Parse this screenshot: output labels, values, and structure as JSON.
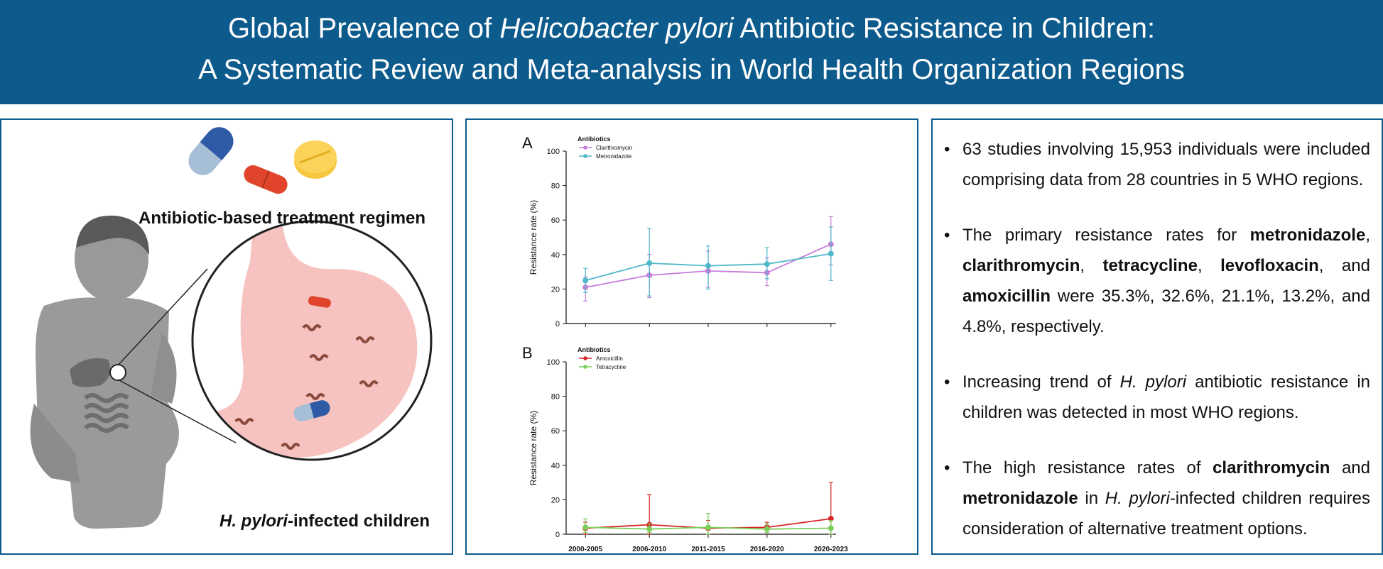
{
  "header": {
    "title_line1_pre": "Global Prevalence of ",
    "title_line1_italic": "Helicobacter pylori",
    "title_line1_post": " Antibiotic Resistance in Children:",
    "title_line2": "A Systematic Review and Meta-analysis in World Health Organization Regions",
    "banner_color": "#0d5b8c"
  },
  "illustration": {
    "treatment_label": "Antibiotic-based treatment regimen",
    "children_label_italic": "H. pylori",
    "children_label_rest": "-infected children",
    "icons": [
      "capsule-icon",
      "tablet-icon",
      "round-pill-icon",
      "child-silhouette-icon",
      "stomach-icon",
      "bacteria-icon"
    ]
  },
  "chart_data": [
    {
      "type": "line",
      "panel_label": "A",
      "legend_title": "Antibiotics",
      "ylabel": "Resistance rate (%)",
      "ylim": [
        0,
        100
      ],
      "yticks": [
        "0",
        "20",
        "40",
        "60",
        "80",
        "100"
      ],
      "categories": [
        "2000-2005",
        "2006-2010",
        "2011-2015",
        "2016-2020",
        "2020-2023"
      ],
      "series": [
        {
          "name": "Clarithromycin",
          "color": "#c77ddb",
          "values": [
            21,
            28,
            30.5,
            29.5,
            46
          ],
          "err_low": [
            13,
            15,
            21,
            22,
            34
          ],
          "err_high": [
            27,
            40,
            42,
            38,
            62
          ]
        },
        {
          "name": "Metronidazole",
          "color": "#4fb8c9",
          "values": [
            25,
            35,
            33.5,
            34.5,
            40.5
          ],
          "err_low": [
            18,
            16,
            20,
            26,
            25
          ],
          "err_high": [
            32,
            55,
            45,
            44,
            56
          ]
        }
      ]
    },
    {
      "type": "line",
      "panel_label": "B",
      "legend_title": "Antibiotics",
      "ylabel": "Resistance rate (%)",
      "ylim": [
        0,
        100
      ],
      "yticks": [
        "0",
        "20",
        "40",
        "60",
        "80",
        "100"
      ],
      "categories": [
        "2000-2005",
        "2006-2010",
        "2011-2015",
        "2016-2020",
        "2020-2023"
      ],
      "series": [
        {
          "name": "Amoxicillin",
          "color": "#d62424",
          "values": [
            3.5,
            5.5,
            3.5,
            4,
            9
          ],
          "err_low": [
            0,
            0,
            0,
            1,
            0
          ],
          "err_high": [
            7,
            23,
            8,
            7,
            30
          ]
        },
        {
          "name": "Tetracycline",
          "color": "#7ccf5d",
          "values": [
            4,
            3,
            4,
            3,
            3.5
          ],
          "err_low": [
            1,
            1,
            0,
            1,
            0
          ],
          "err_high": [
            9,
            6,
            12,
            6,
            8
          ]
        }
      ]
    }
  ],
  "findings": {
    "b1": "63 studies involving 15,953 individuals were included comprising data from 28 countries in 5 WHO regions.",
    "b2_pre": "The primary resistance rates for ",
    "b2_d1": "metronidazole",
    "b2_s1": ", ",
    "b2_d2": "clarithromycin",
    "b2_s2": ", ",
    "b2_d3": "tetracycline",
    "b2_s3": ", ",
    "b2_d4": "levofloxacin",
    "b2_s4": ", and ",
    "b2_d5": "amoxicillin",
    "b2_post": " were 35.3%, 32.6%, 21.1%, 13.2%, and 4.8%, respectively.",
    "b3_pre": "Increasing trend of ",
    "b3_italic": "H. pylori",
    "b3_post": " antibiotic resistance in children was detected in most WHO regions.",
    "b4_pre": "The high resistance rates of ",
    "b4_d1": "clarithromycin",
    "b4_mid": " and ",
    "b4_d2": "metronidazole",
    "b4_mid2": " in ",
    "b4_italic": "H. pylori",
    "b4_post": "-infected children requires consideration of alternative treatment options.",
    "bullet_glyph": "•"
  }
}
